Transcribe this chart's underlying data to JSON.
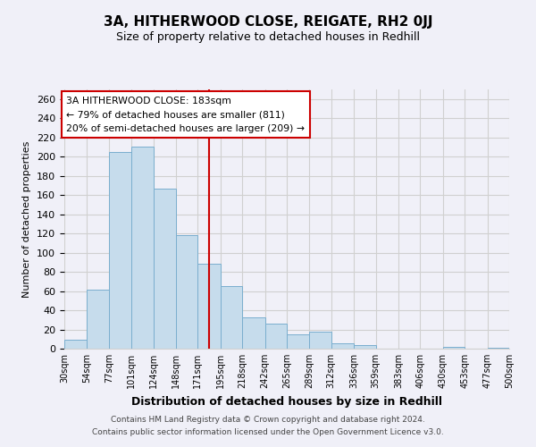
{
  "title": "3A, HITHERWOOD CLOSE, REIGATE, RH2 0JJ",
  "subtitle": "Size of property relative to detached houses in Redhill",
  "xlabel": "Distribution of detached houses by size in Redhill",
  "ylabel": "Number of detached properties",
  "bar_color": "#c6dcec",
  "bar_edge_color": "#7aaece",
  "bin_edges": [
    30,
    54,
    77,
    101,
    124,
    148,
    171,
    195,
    218,
    242,
    265,
    289,
    312,
    336,
    359,
    383,
    406,
    430,
    453,
    477,
    500
  ],
  "bar_heights": [
    9,
    61,
    205,
    210,
    167,
    118,
    88,
    65,
    33,
    26,
    15,
    18,
    6,
    4,
    0,
    0,
    0,
    2,
    0,
    1
  ],
  "tick_labels": [
    "30sqm",
    "54sqm",
    "77sqm",
    "101sqm",
    "124sqm",
    "148sqm",
    "171sqm",
    "195sqm",
    "218sqm",
    "242sqm",
    "265sqm",
    "289sqm",
    "312sqm",
    "336sqm",
    "359sqm",
    "383sqm",
    "406sqm",
    "430sqm",
    "453sqm",
    "477sqm",
    "500sqm"
  ],
  "vline_x": 183,
  "vline_color": "#cc0000",
  "annotation_line1": "3A HITHERWOOD CLOSE: 183sqm",
  "annotation_line2": "← 79% of detached houses are smaller (811)",
  "annotation_line3": "20% of semi-detached houses are larger (209) →",
  "annotation_box_color": "white",
  "annotation_border_color": "#cc0000",
  "grid_color": "#d0d0d0",
  "ylim": [
    0,
    270
  ],
  "yticks": [
    0,
    20,
    40,
    60,
    80,
    100,
    120,
    140,
    160,
    180,
    200,
    220,
    240,
    260
  ],
  "footer_line1": "Contains HM Land Registry data © Crown copyright and database right 2024.",
  "footer_line2": "Contains public sector information licensed under the Open Government Licence v3.0.",
  "bg_color": "#f0f0f8"
}
